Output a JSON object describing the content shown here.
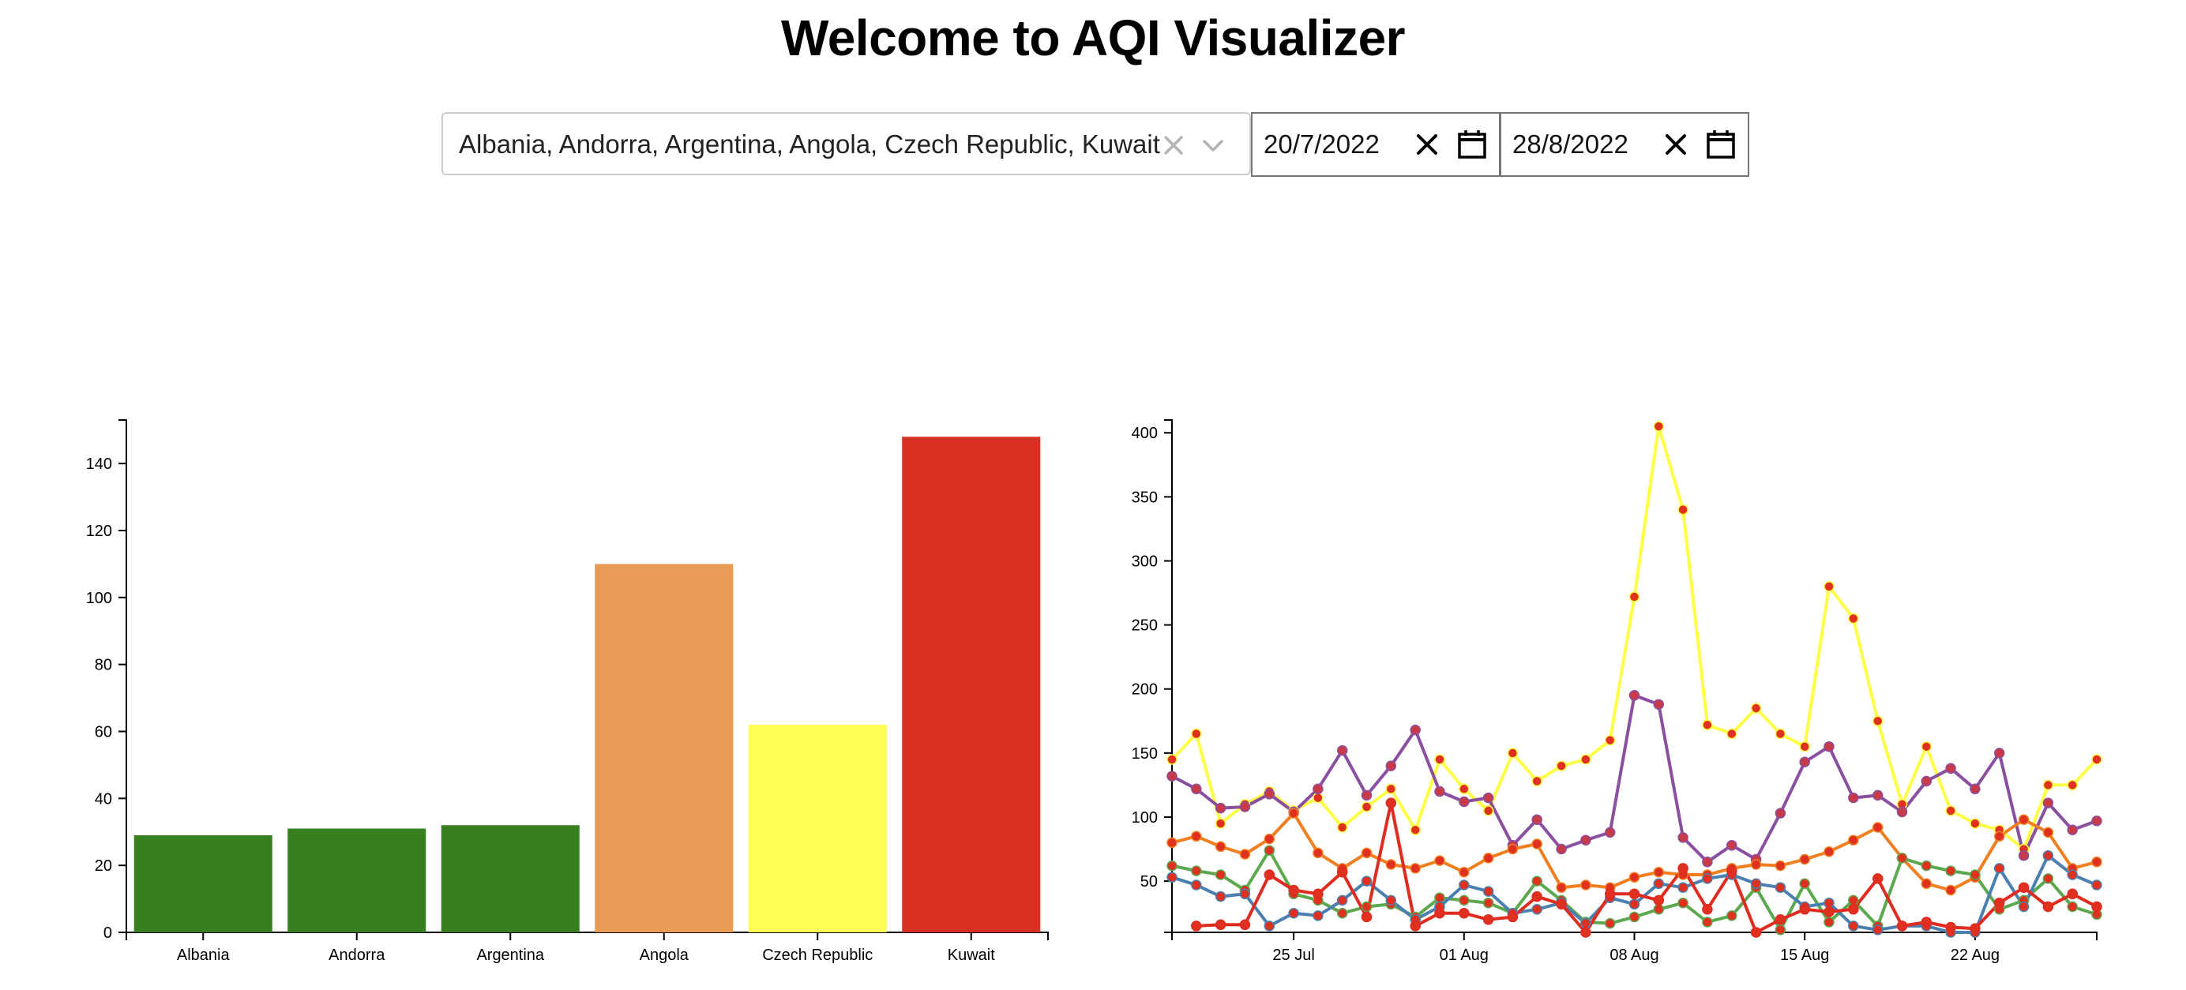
{
  "page": {
    "title": "Welcome to AQI Visualizer"
  },
  "filters": {
    "countries_display": "Albania, Andorra, Argentina, Angola, Czech Republic, Kuwait",
    "start_date": "20/7/2022",
    "end_date": "28/8/2022"
  },
  "icons": {
    "clear_selection": "x-icon",
    "dropdown": "chevron-down-icon",
    "clear_date": "x-icon",
    "calendar": "calendar-icon"
  },
  "chart_data": [
    {
      "type": "bar",
      "categories": [
        "Albania",
        "Andorra",
        "Argentina",
        "Angola",
        "Czech Republic",
        "Kuwait"
      ],
      "values": [
        29,
        31,
        32,
        110,
        62,
        148
      ],
      "colors": [
        "#38801f",
        "#38801f",
        "#38801f",
        "#e89b55",
        "#ffff55",
        "#d93024"
      ],
      "yticks": [
        0,
        20,
        40,
        60,
        80,
        100,
        120,
        140
      ],
      "ylim": [
        0,
        153
      ],
      "grid": false,
      "legend": "none"
    },
    {
      "type": "line",
      "start_date": "2022-07-20",
      "xticks": [
        "25 Jul",
        "01 Aug",
        "08 Aug",
        "15 Aug",
        "22 Aug"
      ],
      "xtick_days": [
        5,
        12,
        19,
        26,
        33
      ],
      "xlim": [
        0,
        38
      ],
      "yticks": [
        50,
        100,
        150,
        200,
        250,
        300,
        350,
        400
      ],
      "ylim": [
        10,
        410
      ],
      "grid": false,
      "legend": "none",
      "point_color": "#e03020",
      "series": [
        {
          "color": "#ffff44",
          "points": [
            [
              0,
              145
            ],
            [
              1,
              165
            ],
            [
              2,
              95
            ],
            [
              3,
              110
            ],
            [
              4,
              120
            ],
            [
              5,
              105
            ],
            [
              6,
              115
            ],
            [
              7,
              92
            ],
            [
              8,
              108
            ],
            [
              9,
              122
            ],
            [
              10,
              90
            ],
            [
              11,
              145
            ],
            [
              12,
              122
            ],
            [
              13,
              105
            ],
            [
              14,
              150
            ],
            [
              15,
              128
            ],
            [
              16,
              140
            ],
            [
              17,
              145
            ],
            [
              18,
              160
            ],
            [
              19,
              272
            ],
            [
              20,
              405
            ],
            [
              21,
              340
            ],
            [
              22,
              172
            ],
            [
              23,
              165
            ],
            [
              24,
              185
            ],
            [
              25,
              165
            ],
            [
              26,
              155
            ],
            [
              27,
              280
            ],
            [
              28,
              255
            ],
            [
              29,
              175
            ],
            [
              30,
              110
            ],
            [
              31,
              155
            ],
            [
              32,
              105
            ],
            [
              33,
              95
            ],
            [
              34,
              90
            ],
            [
              35,
              75
            ],
            [
              36,
              125
            ],
            [
              37,
              125
            ],
            [
              38,
              145
            ]
          ]
        },
        {
          "color": "#8b4fa0",
          "points": [
            [
              0,
              132
            ],
            [
              1,
              122
            ],
            [
              2,
              107
            ],
            [
              3,
              108
            ],
            [
              4,
              118
            ],
            [
              5,
              104
            ],
            [
              6,
              122
            ],
            [
              7,
              152
            ],
            [
              8,
              117
            ],
            [
              9,
              140
            ],
            [
              10,
              168
            ],
            [
              11,
              120
            ],
            [
              12,
              112
            ],
            [
              13,
              115
            ],
            [
              14,
              78
            ],
            [
              15,
              98
            ],
            [
              16,
              75
            ],
            [
              17,
              82
            ],
            [
              18,
              88
            ],
            [
              19,
              195
            ],
            [
              20,
              188
            ],
            [
              21,
              84
            ],
            [
              22,
              65
            ],
            [
              23,
              78
            ],
            [
              24,
              67
            ],
            [
              25,
              103
            ],
            [
              26,
              143
            ],
            [
              27,
              155
            ],
            [
              28,
              115
            ],
            [
              29,
              117
            ],
            [
              30,
              104
            ],
            [
              31,
              128
            ],
            [
              32,
              138
            ],
            [
              33,
              122
            ],
            [
              34,
              150
            ],
            [
              35,
              70
            ],
            [
              36,
              111
            ],
            [
              37,
              90
            ],
            [
              38,
              97
            ]
          ]
        },
        {
          "color": "#f07f20",
          "points": [
            [
              0,
              80
            ],
            [
              1,
              85
            ],
            [
              2,
              77
            ],
            [
              3,
              71
            ],
            [
              4,
              83
            ],
            [
              5,
              103
            ],
            [
              6,
              72
            ],
            [
              7,
              60
            ],
            [
              8,
              72
            ],
            [
              9,
              63
            ],
            [
              10,
              60
            ],
            [
              11,
              66
            ],
            [
              12,
              57
            ],
            [
              13,
              68
            ],
            [
              14,
              75
            ],
            [
              15,
              79
            ],
            [
              16,
              45
            ],
            [
              17,
              47
            ],
            [
              18,
              45
            ],
            [
              19,
              53
            ],
            [
              20,
              57
            ],
            [
              21,
              55
            ],
            [
              22,
              55
            ],
            [
              23,
              60
            ],
            [
              24,
              63
            ],
            [
              25,
              62
            ],
            [
              26,
              67
            ],
            [
              27,
              73
            ],
            [
              28,
              82
            ],
            [
              29,
              92
            ],
            [
              30,
              68
            ],
            [
              31,
              48
            ],
            [
              32,
              43
            ],
            [
              33,
              53
            ],
            [
              34,
              85
            ],
            [
              35,
              98
            ],
            [
              36,
              88
            ],
            [
              37,
              60
            ],
            [
              38,
              65
            ]
          ]
        },
        {
          "color": "#5ca84e",
          "points": [
            [
              0,
              62
            ],
            [
              1,
              58
            ],
            [
              2,
              55
            ],
            [
              3,
              43
            ],
            [
              4,
              74
            ],
            [
              5,
              40
            ],
            [
              6,
              35
            ],
            [
              7,
              25
            ],
            [
              8,
              30
            ],
            [
              9,
              32
            ],
            [
              10,
              22
            ],
            [
              11,
              37
            ],
            [
              12,
              35
            ],
            [
              13,
              33
            ],
            [
              14,
              25
            ],
            [
              15,
              50
            ],
            [
              16,
              35
            ],
            [
              17,
              18
            ],
            [
              18,
              17
            ],
            [
              19,
              22
            ],
            [
              20,
              28
            ],
            [
              21,
              33
            ],
            [
              22,
              18
            ],
            [
              23,
              23
            ],
            [
              24,
              45
            ],
            [
              25,
              12
            ],
            [
              26,
              48
            ],
            [
              27,
              18
            ],
            [
              28,
              35
            ],
            [
              29,
              15
            ],
            [
              30,
              68
            ],
            [
              31,
              62
            ],
            [
              32,
              58
            ],
            [
              33,
              55
            ],
            [
              34,
              28
            ],
            [
              35,
              35
            ],
            [
              36,
              52
            ],
            [
              37,
              30
            ],
            [
              38,
              24
            ]
          ]
        },
        {
          "color": "#4a7fb0",
          "points": [
            [
              0,
              53
            ],
            [
              1,
              47
            ],
            [
              2,
              38
            ],
            [
              3,
              40
            ],
            [
              4,
              15
            ],
            [
              5,
              25
            ],
            [
              6,
              23
            ],
            [
              7,
              35
            ],
            [
              8,
              50
            ],
            [
              9,
              35
            ],
            [
              10,
              20
            ],
            [
              11,
              30
            ],
            [
              12,
              47
            ],
            [
              13,
              42
            ],
            [
              14,
              25
            ],
            [
              15,
              28
            ],
            [
              16,
              33
            ],
            [
              17,
              17
            ],
            [
              18,
              37
            ],
            [
              19,
              32
            ],
            [
              20,
              48
            ],
            [
              21,
              45
            ],
            [
              22,
              52
            ],
            [
              23,
              55
            ],
            [
              24,
              48
            ],
            [
              25,
              45
            ],
            [
              26,
              30
            ],
            [
              27,
              33
            ],
            [
              28,
              15
            ],
            [
              29,
              12
            ],
            [
              30,
              15
            ],
            [
              31,
              15
            ],
            [
              32,
              10
            ],
            [
              33,
              10
            ],
            [
              34,
              60
            ],
            [
              35,
              30
            ],
            [
              36,
              70
            ],
            [
              37,
              55
            ],
            [
              38,
              47
            ]
          ]
        },
        {
          "color": "#e02b20",
          "points": [
            [
              1,
              15
            ],
            [
              2,
              16
            ],
            [
              3,
              16
            ],
            [
              4,
              55
            ],
            [
              5,
              43
            ],
            [
              6,
              40
            ],
            [
              7,
              57
            ],
            [
              8,
              22
            ],
            [
              9,
              111
            ],
            [
              10,
              15
            ],
            [
              11,
              25
            ],
            [
              12,
              25
            ],
            [
              13,
              20
            ],
            [
              14,
              22
            ],
            [
              15,
              38
            ],
            [
              16,
              32
            ],
            [
              17,
              10
            ],
            [
              18,
              40
            ],
            [
              19,
              40
            ],
            [
              20,
              35
            ],
            [
              21,
              60
            ],
            [
              22,
              28
            ],
            [
              23,
              58
            ],
            [
              24,
              10
            ],
            [
              25,
              20
            ],
            [
              26,
              28
            ],
            [
              27,
              26
            ],
            [
              28,
              28
            ],
            [
              29,
              52
            ],
            [
              30,
              15
            ],
            [
              31,
              18
            ],
            [
              32,
              14
            ],
            [
              33,
              13
            ],
            [
              34,
              33
            ],
            [
              35,
              45
            ],
            [
              36,
              30
            ],
            [
              37,
              40
            ],
            [
              38,
              30
            ]
          ]
        }
      ]
    }
  ]
}
